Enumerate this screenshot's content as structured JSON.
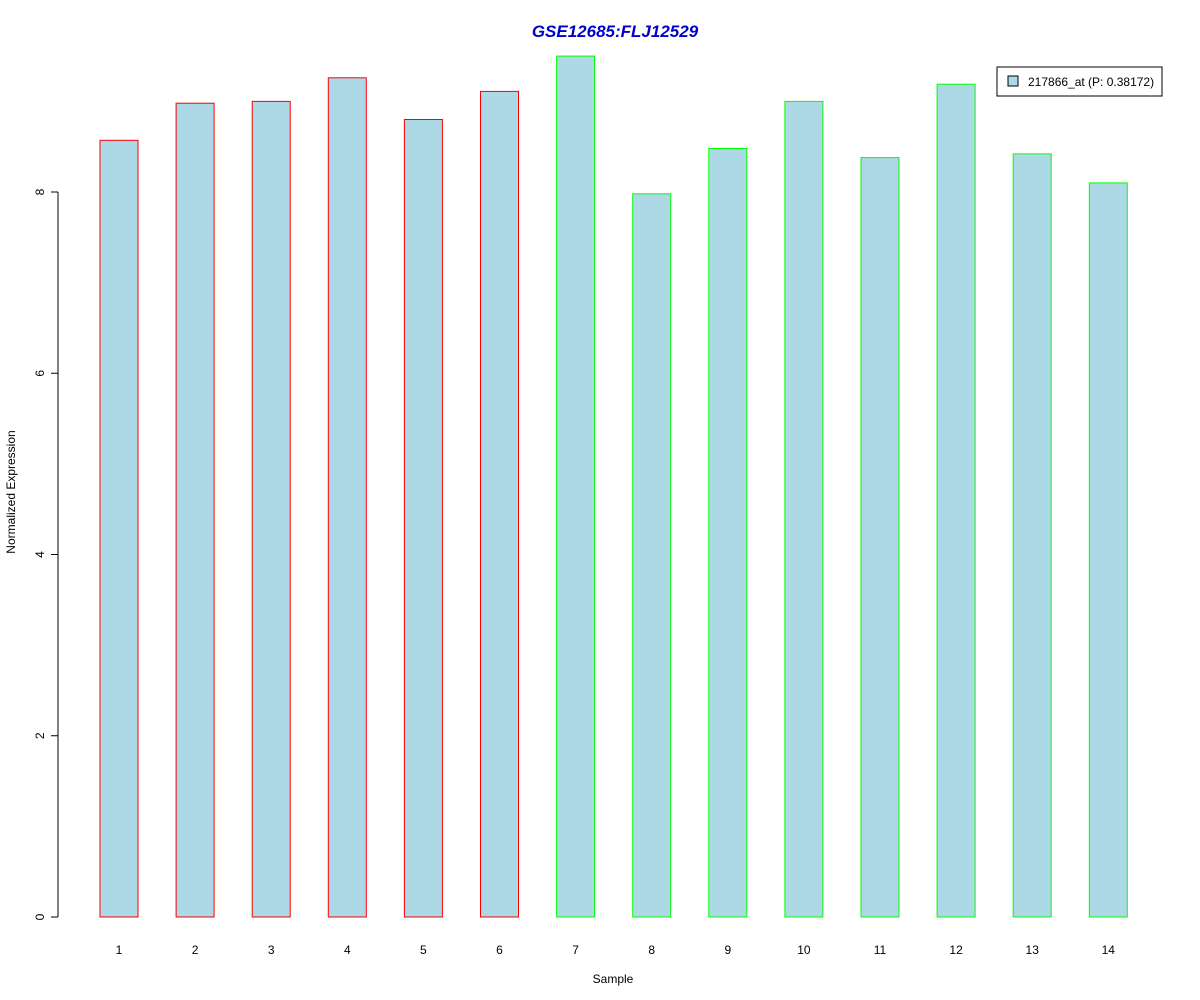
{
  "chart_data": {
    "type": "bar",
    "title": "GSE12685:FLJ12529",
    "xlabel": "Sample",
    "ylabel": "Normalized Expression",
    "categories": [
      "1",
      "2",
      "3",
      "4",
      "5",
      "6",
      "7",
      "8",
      "9",
      "10",
      "11",
      "12",
      "13",
      "14"
    ],
    "series": [
      {
        "name": "217866_at (P: 0.38172)",
        "values": [
          8.57,
          8.98,
          9.0,
          9.26,
          8.8,
          9.11,
          9.5,
          7.98,
          8.48,
          9.0,
          8.38,
          9.19,
          8.42,
          8.1
        ]
      }
    ],
    "groups": [
      1,
      1,
      1,
      1,
      1,
      1,
      2,
      2,
      2,
      2,
      2,
      2,
      2,
      2
    ],
    "ylim": [
      0,
      9.5
    ],
    "yticks": [
      0,
      2,
      4,
      6,
      8
    ],
    "grid": false,
    "legend_position": "top-right",
    "colors": {
      "title": "#0000cc",
      "bar_fill": "#add8e6",
      "group1_border": "#ff0000",
      "group2_border": "#00ff00",
      "axis": "#000000"
    }
  }
}
